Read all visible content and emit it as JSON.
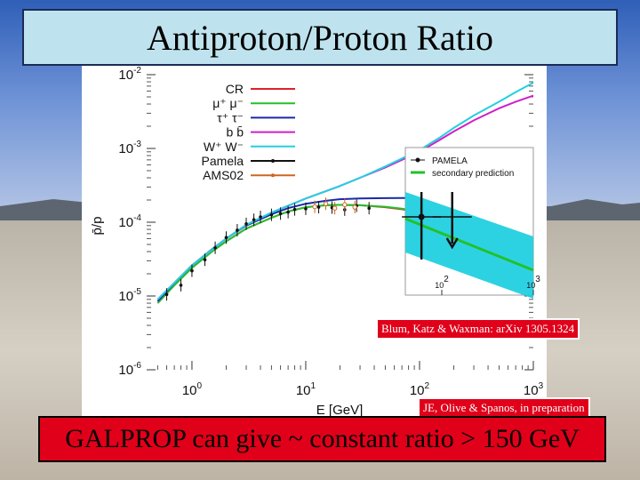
{
  "slide": {
    "title": "Antiproton/Proton Ratio",
    "note_reference_1": "Blum, Katz & Waxman: arXiv 1305.1324",
    "note_reference_2": "JE, Olive & Spanos, in preparation",
    "bottom_banner": "GALPROP can give ~ constant ratio > 150 GeV",
    "colors": {
      "title_box": "#bfe3ee",
      "banner": "#e0001a",
      "note": "#e0001a"
    }
  },
  "chart_data": [
    {
      "type": "line",
      "xlabel": "E [GeV]",
      "ylabel": "p̄/p",
      "x_scale": "log",
      "y_scale": "log",
      "xlim": [
        0.4,
        1000
      ],
      "ylim": [
        1e-06,
        0.01
      ],
      "x_ticks": [
        {
          "value": 1,
          "label": "10^0"
        },
        {
          "value": 10,
          "label": "10^1"
        },
        {
          "value": 100,
          "label": "10^2"
        },
        {
          "value": 1000,
          "label": "10^3"
        }
      ],
      "y_ticks": [
        {
          "value": 1e-06,
          "label": "10^-6"
        },
        {
          "value": 1e-05,
          "label": "10^-5"
        },
        {
          "value": 0.0001,
          "label": "10^-4"
        },
        {
          "value": 0.001,
          "label": "10^-3"
        },
        {
          "value": 0.01,
          "label": "10^-2"
        }
      ],
      "legend_position": "top-left",
      "series": [
        {
          "name": "CR",
          "color": "#e0202a",
          "x": [
            0.5,
            0.7,
            1,
            1.5,
            2,
            3,
            5,
            7,
            10,
            15,
            20,
            30,
            50,
            70,
            100,
            150,
            200,
            300,
            500
          ],
          "y": [
            8e-06,
            1.4e-05,
            2.4e-05,
            4e-05,
            5.5e-05,
            8.2e-05,
            0.000115,
            0.00014,
            0.00016,
            0.00017,
            0.000172,
            0.00017,
            0.00016,
            0.00015,
            0.000138,
            0.00012,
            0.00011,
            0.0001,
            9e-05
          ]
        },
        {
          "name": "μ⁺ μ⁻",
          "color": "#22c12a",
          "x": [
            0.5,
            0.7,
            1,
            1.5,
            2,
            3,
            5,
            7,
            10,
            15,
            20,
            30,
            50,
            70,
            100,
            150,
            200,
            300,
            500
          ],
          "y": [
            8e-06,
            1.4e-05,
            2.4e-05,
            4e-05,
            5.5e-05,
            8.2e-05,
            0.000115,
            0.00014,
            0.00016,
            0.00017,
            0.000172,
            0.00017,
            0.000162,
            0.000153,
            0.00014,
            0.000123,
            0.000112,
            0.000102,
            9e-05
          ]
        },
        {
          "name": "τ⁺ τ⁻",
          "color": "#1a2aa8",
          "x": [
            0.5,
            0.7,
            1,
            1.5,
            2,
            3,
            5,
            7,
            10,
            15,
            20,
            30,
            50,
            70,
            100,
            120
          ],
          "y": [
            8.5e-06,
            1.5e-05,
            2.6e-05,
            4.3e-05,
            6e-05,
            9e-05,
            0.000128,
            0.000155,
            0.000178,
            0.000195,
            0.000205,
            0.00021,
            0.000212,
            0.000213,
            0.000213,
            0.000213
          ]
        },
        {
          "name": "b b̄",
          "color": "#d020c8",
          "x": [
            0.5,
            1,
            2,
            3,
            5,
            10,
            20,
            30,
            50,
            70,
            100,
            150,
            200,
            300,
            500,
            700,
            1000
          ],
          "y": [
            9e-06,
            2.6e-05,
            6e-05,
            9.2e-05,
            0.000135,
            0.00021,
            0.00031,
            0.0004,
            0.00055,
            0.0007,
            0.0009,
            0.0013,
            0.0017,
            0.0024,
            0.0035,
            0.0043,
            0.0052
          ]
        },
        {
          "name": "W⁺ W⁻",
          "color": "#22d0e0",
          "x": [
            0.5,
            1,
            2,
            3,
            5,
            10,
            20,
            30,
            50,
            70,
            100,
            150,
            200,
            300,
            500,
            700,
            1000
          ],
          "y": [
            9e-06,
            2.6e-05,
            6e-05,
            9.2e-05,
            0.000135,
            0.00021,
            0.00031,
            0.0004,
            0.00057,
            0.00073,
            0.00095,
            0.0014,
            0.0019,
            0.0028,
            0.0043,
            0.0058,
            0.0078
          ]
        }
      ],
      "points": [
        {
          "name": "Pamela",
          "color": "#111111",
          "x": [
            0.6,
            0.8,
            1.0,
            1.3,
            1.6,
            2.0,
            2.5,
            3.0,
            3.5,
            4.0,
            5.0,
            6.0,
            7.0,
            8.0,
            10.0,
            13.0,
            17.0,
            22.0,
            28.0,
            36.0
          ],
          "y": [
            1.05e-05,
            1.4e-05,
            2.2e-05,
            3.1e-05,
            4.5e-05,
            6.2e-05,
            7.8e-05,
            9.5e-05,
            0.000108,
            0.000118,
            0.000126,
            0.000131,
            0.000137,
            0.000149,
            0.000152,
            0.00016,
            0.000158,
            0.000148,
            0.000167,
            0.000155
          ]
        },
        {
          "name": "AMS02",
          "color": "#cc6622",
          "x": [
            12,
            15,
            18,
            22,
            27
          ],
          "y": [
            0.000162,
            0.000178,
            0.000155,
            0.000173,
            0.00016
          ]
        }
      ]
    },
    {
      "type": "scatter",
      "inset": true,
      "legend": [
        "PAMELA",
        "secondary prediction"
      ],
      "legend_position": "top",
      "x_scale": "log",
      "y_scale": "log",
      "x_ticks": [
        {
          "value": 100,
          "label": "10^2"
        },
        {
          "value": 1000,
          "label": "10^3"
        }
      ],
      "band_color": "#22d0e0",
      "line_color": "#22c12a",
      "points": [
        {
          "x": 60,
          "y": 0.000165,
          "upper_limit": false
        },
        {
          "x": 130,
          "y": 0.000158,
          "upper_limit": true
        }
      ]
    }
  ]
}
